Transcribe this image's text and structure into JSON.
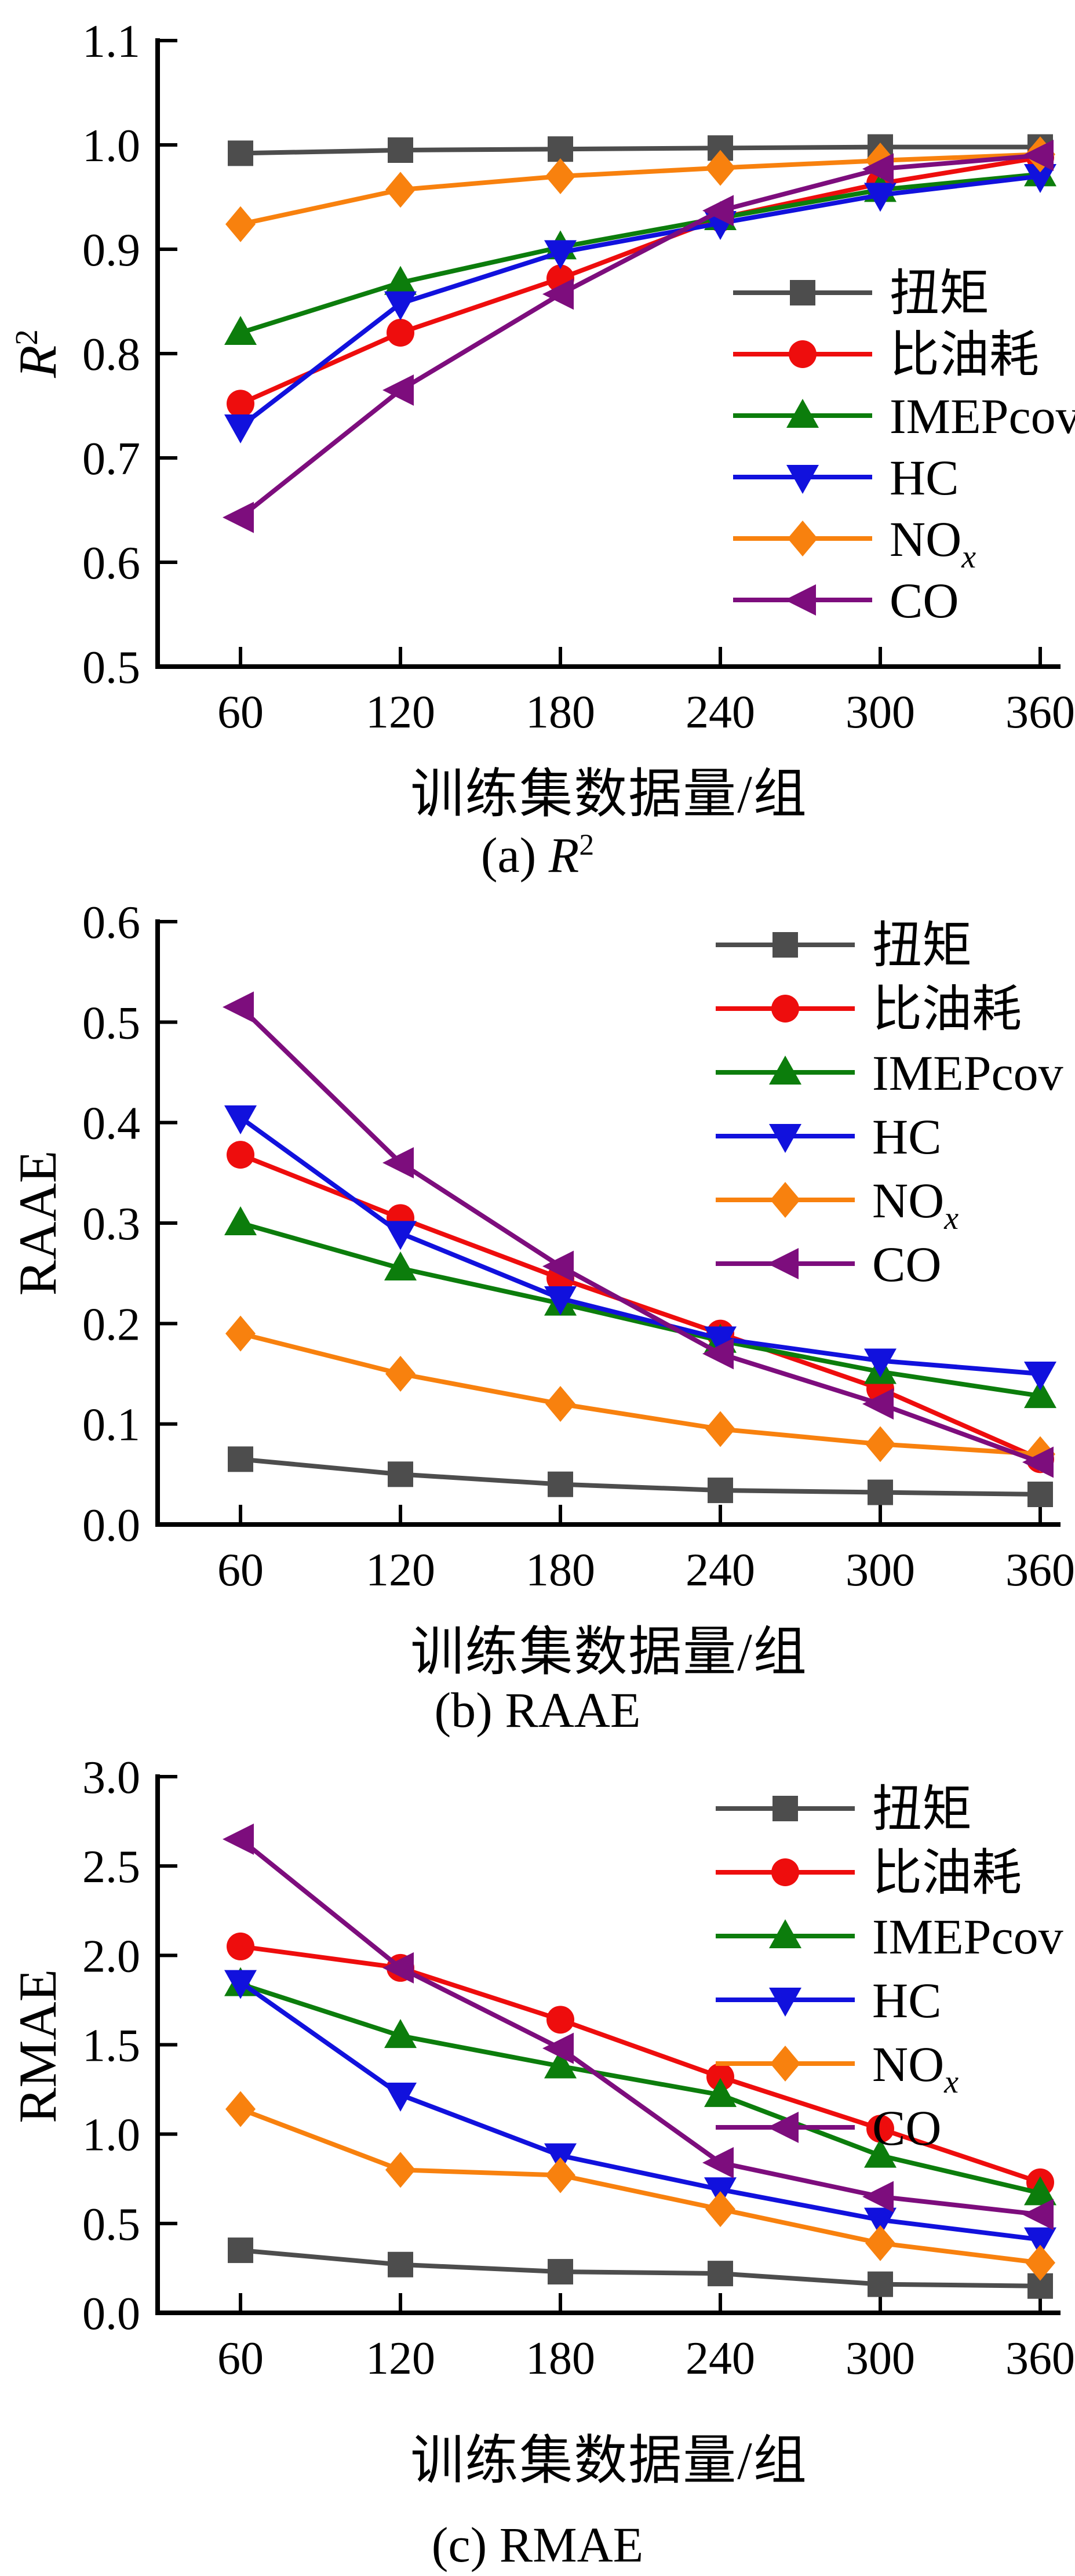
{
  "x_axis": {
    "label": "训练集数据量/组",
    "tick_labels": [
      "60",
      "120",
      "180",
      "240",
      "300",
      "360"
    ],
    "values": [
      60,
      120,
      180,
      240,
      300,
      360
    ]
  },
  "series_meta": [
    {
      "id": "torque",
      "label": "扭矩",
      "label_sub": "",
      "color": "#4d4d4d",
      "marker": "square"
    },
    {
      "id": "bsfc",
      "label": "比油耗",
      "label_sub": "",
      "color": "#ee0d0d",
      "marker": "circle"
    },
    {
      "id": "imepcov",
      "label": "IMEPcov",
      "label_sub": "",
      "color": "#0c7d0c",
      "marker": "triangle-up"
    },
    {
      "id": "hc",
      "label": "HC",
      "label_sub": "",
      "color": "#1111dd",
      "marker": "triangle-down"
    },
    {
      "id": "nox",
      "label": "NO",
      "label_sub": "x",
      "color": "#f8810e",
      "marker": "diamond"
    },
    {
      "id": "co",
      "label": "CO",
      "label_sub": "",
      "color": "#7d0d7d",
      "marker": "triangle-left"
    }
  ],
  "chart_data": [
    {
      "type": "line",
      "caption": {
        "prefix": "(a) ",
        "italic": "R",
        "sup": "2",
        "text": ""
      },
      "ylabel": {
        "italic": "R",
        "sup": "2",
        "text": ""
      },
      "xlabel": "训练集数据量/组",
      "x": [
        60,
        120,
        180,
        240,
        300,
        360
      ],
      "ylim": [
        0.5,
        1.1
      ],
      "ytick_labels": [
        "0.5",
        "0.6",
        "0.7",
        "0.8",
        "0.9",
        "1.0",
        "1.1"
      ],
      "legend_position": "center-right",
      "grid": false,
      "series": {
        "torque": [
          0.992,
          0.995,
          0.996,
          0.997,
          0.998,
          0.998
        ],
        "bsfc": [
          0.752,
          0.82,
          0.872,
          0.93,
          0.963,
          0.988
        ],
        "imepcov": [
          0.82,
          0.868,
          0.902,
          0.93,
          0.957,
          0.972
        ],
        "hc": [
          0.73,
          0.848,
          0.897,
          0.925,
          0.952,
          0.97
        ],
        "nox": [
          0.924,
          0.957,
          0.97,
          0.978,
          0.985,
          0.991
        ],
        "co": [
          0.643,
          0.765,
          0.857,
          0.937,
          0.977,
          0.99
        ]
      }
    },
    {
      "type": "line",
      "caption": {
        "prefix": "(b) ",
        "italic": "",
        "sup": "",
        "text": "RAAE"
      },
      "ylabel": {
        "italic": "",
        "sup": "",
        "text": "RAAE"
      },
      "xlabel": "训练集数据量/组",
      "x": [
        60,
        120,
        180,
        240,
        300,
        360
      ],
      "ylim": [
        0.0,
        0.6
      ],
      "ytick_labels": [
        "0.0",
        "0.1",
        "0.2",
        "0.3",
        "0.4",
        "0.5",
        "0.6"
      ],
      "legend_position": "top-right",
      "grid": false,
      "series": {
        "torque": [
          0.065,
          0.05,
          0.04,
          0.034,
          0.032,
          0.03
        ],
        "bsfc": [
          0.368,
          0.305,
          0.245,
          0.19,
          0.135,
          0.065
        ],
        "imepcov": [
          0.3,
          0.255,
          0.22,
          0.183,
          0.152,
          0.128
        ],
        "hc": [
          0.405,
          0.29,
          0.225,
          0.185,
          0.163,
          0.15
        ],
        "nox": [
          0.19,
          0.15,
          0.12,
          0.095,
          0.08,
          0.07
        ],
        "co": [
          0.515,
          0.36,
          0.257,
          0.17,
          0.12,
          0.062
        ]
      }
    },
    {
      "type": "line",
      "caption": {
        "prefix": "(c) ",
        "italic": "",
        "sup": "",
        "text": "RMAE"
      },
      "ylabel": {
        "italic": "",
        "sup": "",
        "text": "RMAE"
      },
      "xlabel": "训练集数据量/组",
      "x": [
        60,
        120,
        180,
        240,
        300,
        360
      ],
      "ylim": [
        0.0,
        3.0
      ],
      "ytick_labels": [
        "0.0",
        "0.5",
        "1.0",
        "1.5",
        "2.0",
        "2.5",
        "3.0"
      ],
      "legend_position": "top-right",
      "grid": false,
      "series": {
        "torque": [
          0.35,
          0.27,
          0.23,
          0.22,
          0.16,
          0.15
        ],
        "bsfc": [
          2.05,
          1.93,
          1.64,
          1.32,
          1.03,
          0.73
        ],
        "imepcov": [
          1.84,
          1.55,
          1.38,
          1.22,
          0.88,
          0.67
        ],
        "hc": [
          1.85,
          1.22,
          0.88,
          0.69,
          0.52,
          0.41
        ],
        "nox": [
          1.14,
          0.8,
          0.77,
          0.58,
          0.39,
          0.28
        ],
        "co": [
          2.65,
          1.93,
          1.48,
          0.84,
          0.65,
          0.55
        ]
      }
    }
  ]
}
